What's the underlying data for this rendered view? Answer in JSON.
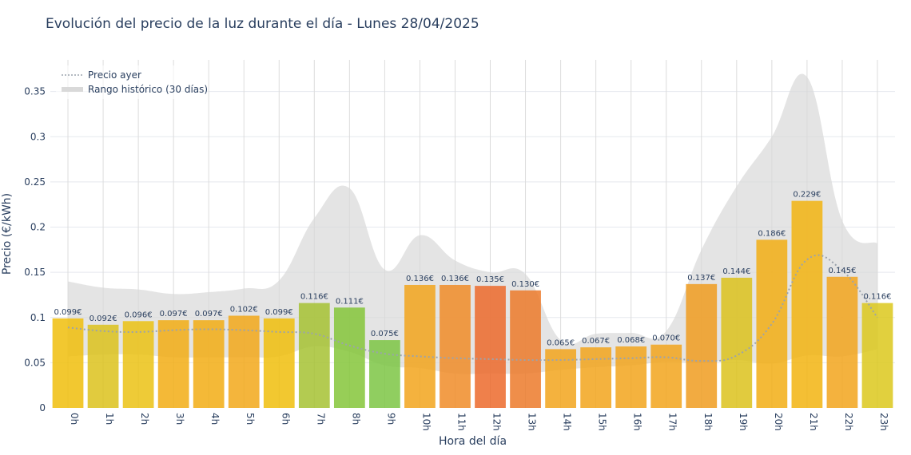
{
  "chart_data": {
    "type": "bar",
    "title": "Evolución del precio de la luz durante el día - Lunes 28/04/2025",
    "xlabel": "Hora del día",
    "ylabel": "Precio (€/kWh)",
    "ylim": [
      0,
      0.385
    ],
    "yticks": [
      0,
      0.05,
      0.1,
      0.15,
      0.2,
      0.25,
      0.3,
      0.35
    ],
    "ytick_labels": [
      "0",
      "0.05",
      "0.1",
      "0.15",
      "0.2",
      "0.25",
      "0.3",
      "0.35"
    ],
    "categories": [
      "0h",
      "1h",
      "2h",
      "3h",
      "4h",
      "5h",
      "6h",
      "7h",
      "8h",
      "9h",
      "10h",
      "11h",
      "12h",
      "13h",
      "14h",
      "15h",
      "16h",
      "17h",
      "18h",
      "19h",
      "20h",
      "21h",
      "22h",
      "23h"
    ],
    "values": [
      0.099,
      0.092,
      0.096,
      0.097,
      0.097,
      0.102,
      0.099,
      0.116,
      0.111,
      0.075,
      0.136,
      0.136,
      0.135,
      0.13,
      0.065,
      0.067,
      0.068,
      0.07,
      0.137,
      0.144,
      0.186,
      0.229,
      0.145,
      0.116
    ],
    "value_labels": [
      "0.099€",
      "0.092€",
      "0.096€",
      "0.097€",
      "0.097€",
      "0.102€",
      "0.099€",
      "0.116€",
      "0.111€",
      "0.075€",
      "0.136€",
      "0.136€",
      "0.135€",
      "0.130€",
      "0.065€",
      "0.067€",
      "0.068€",
      "0.070€",
      "0.137€",
      "0.144€",
      "0.186€",
      "0.229€",
      "0.145€",
      "0.116€"
    ],
    "bar_colors": [
      "#f0be0c",
      "#dcc21c",
      "#ebc214",
      "#f2ad14",
      "#f2ad14",
      "#f2a81a",
      "#f0be0c",
      "#a6c232",
      "#85c63a",
      "#7cc644",
      "#f2a41c",
      "#f08c28",
      "#ec6a2c",
      "#ec7a2a",
      "#f2a41c",
      "#f2a41c",
      "#f2a41c",
      "#f2a41c",
      "#f09c20",
      "#dcc21c",
      "#f2ae14",
      "#f2b410",
      "#f2a41c",
      "#dcc81c"
    ],
    "series": [
      {
        "name": "Precio ayer",
        "type": "line",
        "values": [
          0.089,
          0.085,
          0.084,
          0.086,
          0.087,
          0.086,
          0.084,
          0.082,
          0.069,
          0.06,
          0.057,
          0.055,
          0.054,
          0.053,
          0.053,
          0.054,
          0.055,
          0.056,
          0.052,
          0.058,
          0.093,
          0.164,
          0.152,
          0.1
        ]
      },
      {
        "name": "Rango histórico (30 días)",
        "type": "band",
        "upper": [
          0.14,
          0.133,
          0.131,
          0.126,
          0.128,
          0.132,
          0.141,
          0.21,
          0.243,
          0.153,
          0.191,
          0.163,
          0.15,
          0.148,
          0.075,
          0.082,
          0.083,
          0.085,
          0.175,
          0.245,
          0.3,
          0.366,
          0.207,
          0.182
        ],
        "lower": [
          0.057,
          0.059,
          0.059,
          0.056,
          0.056,
          0.056,
          0.057,
          0.068,
          0.062,
          0.047,
          0.044,
          0.038,
          0.038,
          0.038,
          0.042,
          0.045,
          0.047,
          0.051,
          0.05,
          0.053,
          0.049,
          0.058,
          0.057,
          0.065
        ]
      }
    ],
    "legend": {
      "placement": "top-left",
      "items": [
        "Precio ayer",
        "Rango histórico (30 días)"
      ]
    },
    "colors": {
      "grid": "#e5e8ee",
      "band": "#d9d9d9",
      "line": "#9ba3ad",
      "text": "#2a3f5f"
    }
  }
}
